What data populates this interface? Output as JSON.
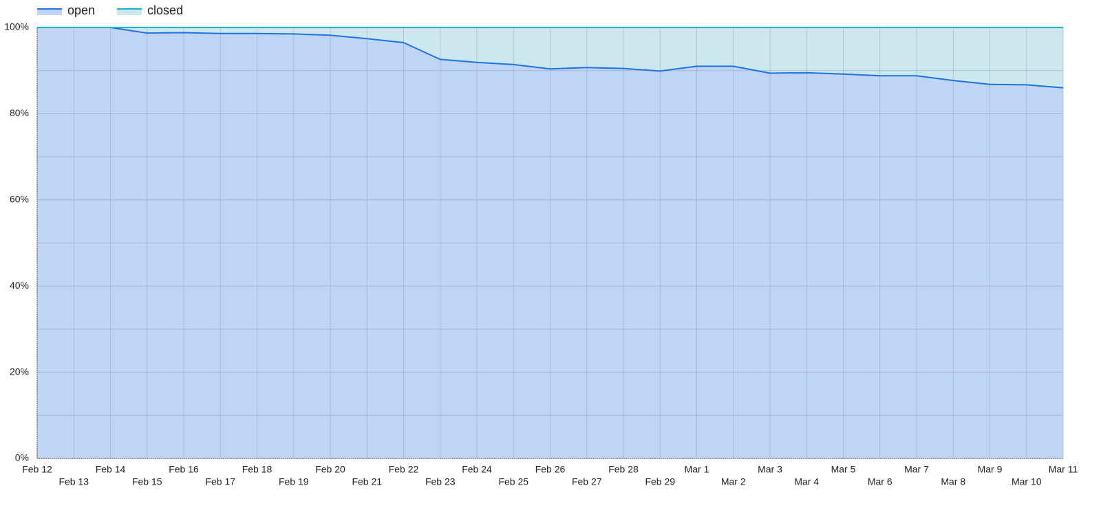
{
  "chart_data": {
    "type": "stacked_area_percent",
    "categories": [
      "Feb 12",
      "Feb 13",
      "Feb 14",
      "Feb 15",
      "Feb 16",
      "Feb 17",
      "Feb 18",
      "Feb 19",
      "Feb 20",
      "Feb 21",
      "Feb 22",
      "Feb 23",
      "Feb 24",
      "Feb 25",
      "Feb 26",
      "Feb 27",
      "Feb 28",
      "Feb 29",
      "Mar 1",
      "Mar 2",
      "Mar 3",
      "Mar 4",
      "Mar 5",
      "Mar 6",
      "Mar 7",
      "Mar 8",
      "Mar 9",
      "Mar 10",
      "Mar 11"
    ],
    "series": [
      {
        "name": "open",
        "color": "#1a73e8",
        "fill": "#c0d4f6",
        "values": [
          100,
          100,
          100,
          98.7,
          98.8,
          98.6,
          98.6,
          98.5,
          98.2,
          97.4,
          96.5,
          92.6,
          91.9,
          91.4,
          90.4,
          90.7,
          90.5,
          89.9,
          91.0,
          91.0,
          89.4,
          89.5,
          89.2,
          88.8,
          88.8,
          87.7,
          86.8,
          86.7,
          86.0
        ]
      },
      {
        "name": "closed",
        "color": "#12b5cb",
        "fill": "#cce8ee",
        "values": [
          0,
          0,
          0,
          1.3,
          1.2,
          1.4,
          1.4,
          1.5,
          1.8,
          2.6,
          3.5,
          7.4,
          8.1,
          8.6,
          9.6,
          9.3,
          9.5,
          10.1,
          9.0,
          9.0,
          10.6,
          10.5,
          10.8,
          11.2,
          11.2,
          12.3,
          13.2,
          13.3,
          14.0
        ]
      }
    ],
    "ylim": [
      0,
      100
    ],
    "yticks": [
      {
        "value": 0,
        "label": "0%"
      },
      {
        "value": 20,
        "label": "20%"
      },
      {
        "value": 40,
        "label": "40%"
      },
      {
        "value": 60,
        "label": "60%"
      },
      {
        "value": 80,
        "label": "80%"
      },
      {
        "value": 100,
        "label": "100%"
      }
    ],
    "grid": true
  }
}
